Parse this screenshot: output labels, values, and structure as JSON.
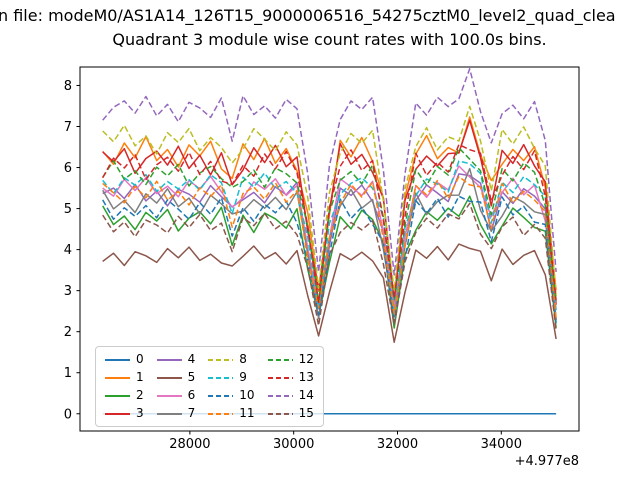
{
  "chart_data": {
    "type": "line",
    "suptitle": "n file: modeM0/AS1A14_126T15_9000006516_54275cztM0_level2_quad_clea",
    "title": "Quadrant 3 module wise count rates with 100.0s bins.",
    "xlabel": "",
    "ylabel": "",
    "x_offset_label": "+4.977e8",
    "grid": false,
    "legend_position": "lower left",
    "legend_ncol": 4,
    "xlim": [
      25883,
      35497
    ],
    "ylim": [
      -0.42,
      8.45
    ],
    "x_ticks": [
      {
        "value": 28000,
        "label": "28000"
      },
      {
        "value": 30000,
        "label": "30000"
      },
      {
        "value": 32000,
        "label": "32000"
      },
      {
        "value": 34000,
        "label": "34000"
      }
    ],
    "y_ticks": [
      {
        "value": 0,
        "label": "0"
      },
      {
        "value": 1,
        "label": "1"
      },
      {
        "value": 2,
        "label": "2"
      },
      {
        "value": 3,
        "label": "3"
      },
      {
        "value": 4,
        "label": "4"
      },
      {
        "value": 5,
        "label": "5"
      },
      {
        "value": 6,
        "label": "6"
      },
      {
        "value": 7,
        "label": "7"
      },
      {
        "value": 8,
        "label": "8"
      }
    ],
    "x_start": 26320,
    "x_step": 208,
    "n_points": 43,
    "noise_pattern": [
      0.35,
      -0.5,
      0.75,
      0.1,
      -0.6,
      0.55,
      -0.25,
      0.9,
      -0.4,
      0.2,
      -0.75,
      0.45,
      -0.15,
      0.65,
      -0.85,
      0.05,
      0.5,
      -0.35,
      0.8,
      -0.55,
      0.25,
      -0.95,
      0.4,
      0.0,
      -0.65,
      0.7,
      -0.2,
      0.85,
      -0.45,
      0.15,
      -0.7,
      0.6,
      -0.05,
      0.95,
      -0.3,
      0.3,
      -0.8,
      0.5,
      -0.1,
      0.75,
      -0.6,
      0.2,
      -0.4
    ],
    "dip_profile": {
      "12": 0.9,
      "19": 0.75,
      "20": 0.47,
      "21": 0.8,
      "26": 0.82,
      "27": 0.45,
      "28": 0.8,
      "33": 1.06,
      "34": 1.1,
      "36": 0.85,
      "41": 0.9,
      "42": 0.45
    },
    "series": [
      {
        "name": "0",
        "color": "#1f77b4",
        "dashed": false,
        "flat_zero": true,
        "mean": 0.0,
        "amp": 0.0,
        "shift": 0
      },
      {
        "name": "1",
        "color": "#ff7f0e",
        "dashed": false,
        "mean": 6.35,
        "amp": 0.45,
        "shift": 3
      },
      {
        "name": "2",
        "color": "#2ca02c",
        "dashed": false,
        "mean": 4.75,
        "amp": 0.35,
        "shift": 7
      },
      {
        "name": "3",
        "color": "#d62728",
        "dashed": false,
        "mean": 6.2,
        "amp": 0.4,
        "shift": 11
      },
      {
        "name": "4",
        "color": "#9467bd",
        "dashed": false,
        "mean": 5.35,
        "amp": 0.3,
        "shift": 15
      },
      {
        "name": "5",
        "color": "#8c564b",
        "dashed": false,
        "mean": 3.85,
        "amp": 0.25,
        "shift": 19
      },
      {
        "name": "6",
        "color": "#e377c2",
        "dashed": false,
        "mean": 5.5,
        "amp": 0.3,
        "shift": 23
      },
      {
        "name": "7",
        "color": "#7f7f7f",
        "dashed": false,
        "mean": 5.15,
        "amp": 0.35,
        "shift": 27
      },
      {
        "name": "8",
        "color": "#bcbd22",
        "dashed": true,
        "mean": 6.65,
        "amp": 0.4,
        "shift": 31
      },
      {
        "name": "9",
        "color": "#17becf",
        "dashed": true,
        "mean": 5.6,
        "amp": 0.3,
        "shift": 35
      },
      {
        "name": "10",
        "color": "#1f77b4",
        "dashed": true,
        "mean": 4.95,
        "amp": 0.35,
        "shift": 39
      },
      {
        "name": "11",
        "color": "#ff7f0e",
        "dashed": true,
        "mean": 5.35,
        "amp": 0.35,
        "shift": 2
      },
      {
        "name": "12",
        "color": "#2ca02c",
        "dashed": true,
        "mean": 5.85,
        "amp": 0.35,
        "shift": 6
      },
      {
        "name": "13",
        "color": "#d62728",
        "dashed": true,
        "mean": 6.05,
        "amp": 0.4,
        "shift": 10
      },
      {
        "name": "14",
        "color": "#9467bd",
        "dashed": true,
        "mean": 7.45,
        "amp": 0.35,
        "shift": 14
      },
      {
        "name": "15",
        "color": "#8c564b",
        "dashed": true,
        "mean": 4.6,
        "amp": 0.3,
        "shift": 18
      }
    ]
  }
}
